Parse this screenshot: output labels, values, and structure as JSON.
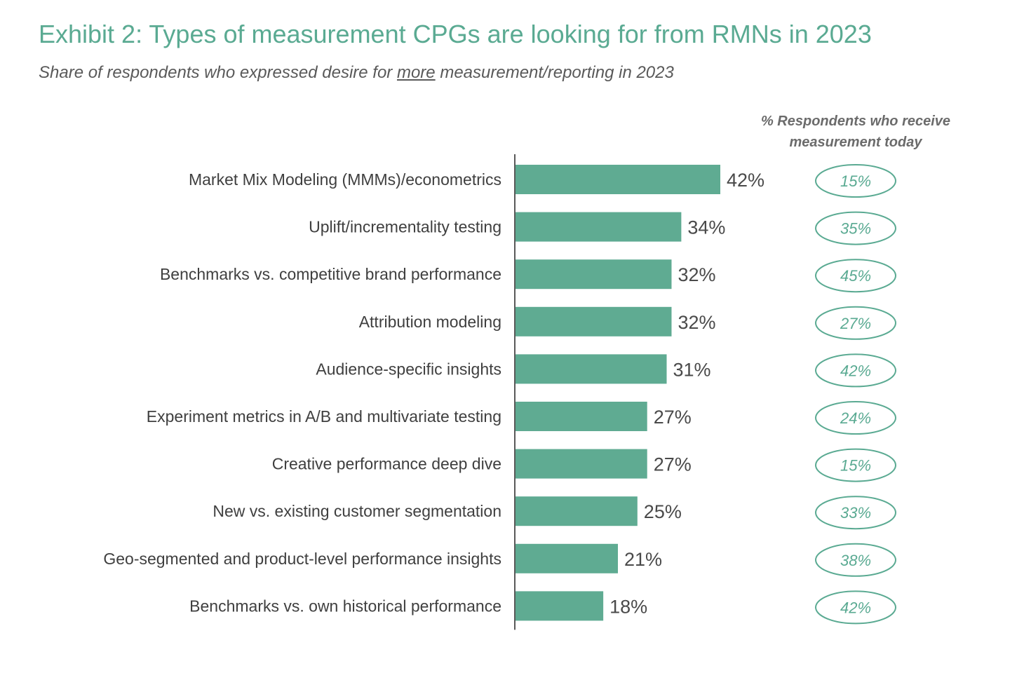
{
  "chart_data": {
    "type": "bar",
    "orientation": "horizontal",
    "title": "Exhibit 2: Types of measurement CPGs are looking for from RMNs in 2023",
    "subtitle": {
      "before": "Share of respondents who expressed desire for ",
      "underlined": "more",
      "after": " measurement/reporting in 2023"
    },
    "categories": [
      "Market Mix Modeling (MMMs)/econometrics",
      "Uplift/incrementality testing",
      "Benchmarks vs. competitive brand performance",
      "Attribution modeling",
      "Audience-specific insights",
      "Experiment metrics in A/B and multivariate testing",
      "Creative performance deep dive",
      "New vs. existing customer segmentation",
      "Geo-segmented and product-level performance insights",
      "Benchmarks vs. own historical performance"
    ],
    "values": [
      42,
      34,
      32,
      32,
      31,
      27,
      27,
      25,
      21,
      18
    ],
    "value_labels": [
      "42%",
      "34%",
      "32%",
      "32%",
      "31%",
      "27%",
      "27%",
      "25%",
      "21%",
      "18%"
    ],
    "secondary_header": "% Respondents who receive measurement today",
    "secondary_values": [
      15,
      35,
      45,
      27,
      42,
      24,
      15,
      33,
      38,
      42
    ],
    "secondary_labels": [
      "15%",
      "35%",
      "45%",
      "27%",
      "42%",
      "24%",
      "15%",
      "33%",
      "38%",
      "42%"
    ],
    "xlim": [
      0,
      42
    ],
    "grid": false,
    "colors": {
      "bar": "#5fab92",
      "accent": "#5aaa92",
      "axis": "#595959"
    }
  }
}
